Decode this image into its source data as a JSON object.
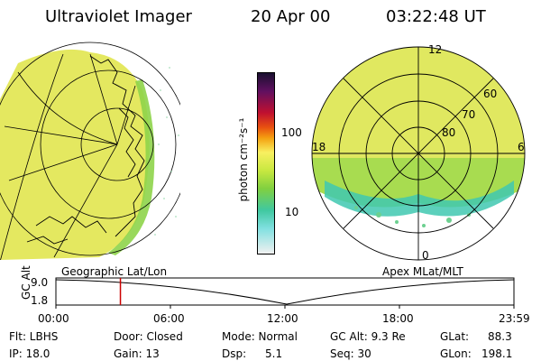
{
  "header": {
    "instrument": "Ultraviolet Imager",
    "date": "20 Apr 00",
    "time": "03:22:48 UT"
  },
  "colorbar": {
    "unit_label": "photon cm⁻²s⁻¹",
    "ticks": [
      "100",
      "10"
    ]
  },
  "polar_plot": {
    "mlt_labels": [
      "12",
      "18",
      "6",
      "0"
    ],
    "mlat_labels": [
      "60",
      "70",
      "80"
    ]
  },
  "panel_labels": {
    "left": "Geographic Lat/Lon",
    "right": "Apex MLat/MLT"
  },
  "altitude_strip": {
    "axis_label": "GC Alt",
    "y_ticks": [
      "9.0",
      "1.8"
    ],
    "x_ticks": [
      "00:00",
      "06:00",
      "12:00",
      "18:00",
      "23:59"
    ],
    "marker_time": "03:22:48"
  },
  "info": {
    "flt": "Flt: LBHS",
    "ip": "IP: 18.0",
    "door": "Door: Closed",
    "gain": "Gain: 13",
    "mode": "Mode: Normal",
    "dsp_label": "Dsp:",
    "dsp_value": "5.1",
    "gc_alt": "GC Alt: 9.3 Re",
    "seq": "Seq: 30",
    "glat_label": "GLat:",
    "glat_value": "88.3",
    "glon_label": "GLon:",
    "glon_value": "198.1"
  },
  "colors": {
    "marker": "#cc0000",
    "fill_yellow": "#e0e85a",
    "fill_green": "#8ed44a",
    "fill_cyan": "#40c8c0"
  }
}
